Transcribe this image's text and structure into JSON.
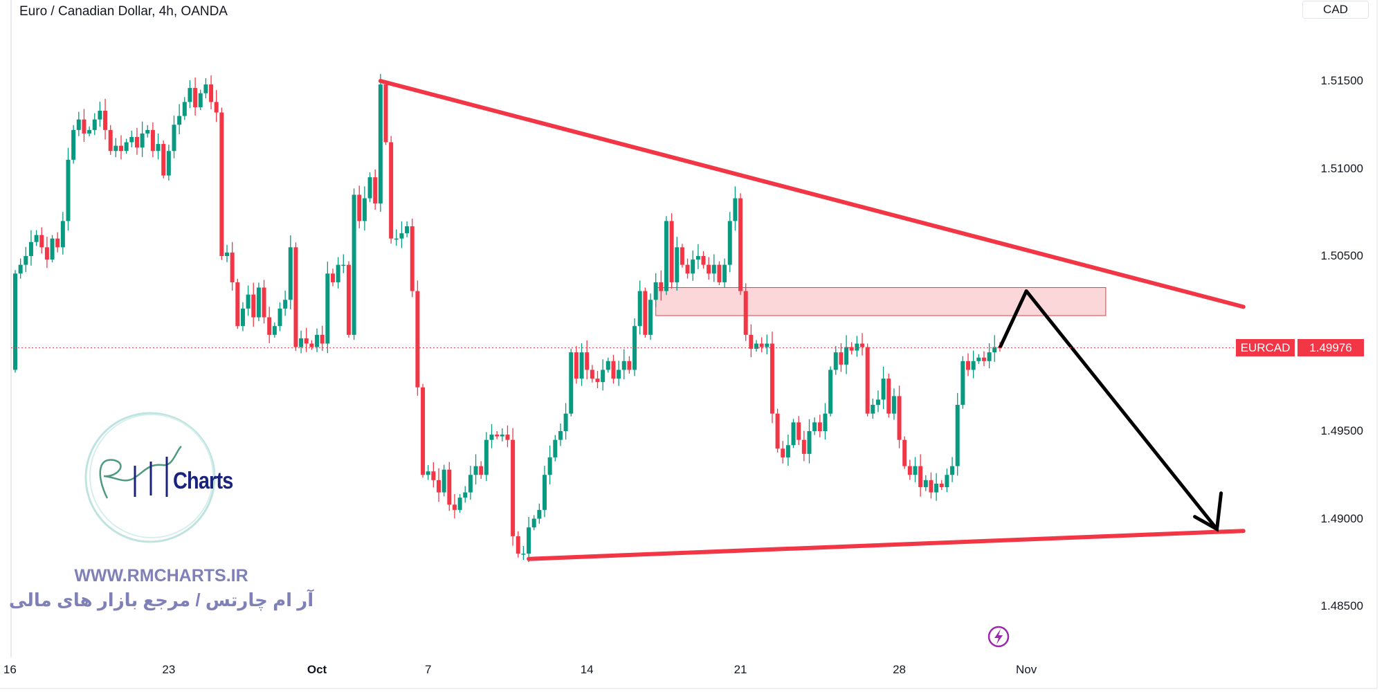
{
  "header": {
    "title": "Euro / Canadian Dollar, 4h, OANDA",
    "currency_button": "CAD"
  },
  "price_tag": {
    "symbol": "EURCAD",
    "value": "1.49976"
  },
  "watermark": {
    "logo_text": "RM Charts",
    "url": "WWW.RMCHARTS.IR",
    "tagline": "آر ام چارتس / مرجع بازار های مالی"
  },
  "icons": {
    "lightning": "lightning-icon"
  },
  "colors": {
    "up": "#089981",
    "down": "#f23645",
    "trendline": "#f23645",
    "arrow": "#000000",
    "zone": "#f23645"
  },
  "chart_data": {
    "type": "candlestick",
    "title": "Euro / Canadian Dollar, 4h, OANDA",
    "ylim": [
      1.4815,
      1.5196
    ],
    "y_ticks": [
      "1.51500",
      "1.51000",
      "1.50500",
      "1.49500",
      "1.49000",
      "1.48500"
    ],
    "y_tick_values": [
      1.515,
      1.51,
      1.505,
      1.495,
      1.49,
      1.485
    ],
    "x_ticks": [
      {
        "label": "16",
        "bar": -1
      },
      {
        "label": "23",
        "bar": 29
      },
      {
        "label": "Oct",
        "bar": 57,
        "bold": true
      },
      {
        "label": "7",
        "bar": 78
      },
      {
        "label": "14",
        "bar": 108
      },
      {
        "label": "21",
        "bar": 137
      },
      {
        "label": "28",
        "bar": 167
      },
      {
        "label": "Nov",
        "bar": 191
      }
    ],
    "first_open": 1.4985,
    "close": [
      1.504,
      1.5045,
      1.505,
      1.5058,
      1.5062,
      1.5055,
      1.5048,
      1.506,
      1.5055,
      1.507,
      1.5105,
      1.5122,
      1.5128,
      1.512,
      1.5122,
      1.5128,
      1.5133,
      1.5122,
      1.511,
      1.5113,
      1.511,
      1.5115,
      1.5118,
      1.5112,
      1.512,
      1.5122,
      1.511,
      1.5114,
      1.5096,
      1.511,
      1.5125,
      1.513,
      1.5138,
      1.5146,
      1.5135,
      1.5143,
      1.5148,
      1.5138,
      1.5132,
      1.505,
      1.5052,
      1.5035,
      1.501,
      1.502,
      1.5028,
      1.5015,
      1.5032,
      1.5015,
      1.5005,
      1.501,
      1.502,
      1.5025,
      1.5055,
      1.4998,
      1.5003,
      1.5,
      1.4998,
      1.5005,
      1.5,
      1.504,
      1.5035,
      1.5045,
      1.5045,
      1.5005,
      1.5085,
      1.507,
      1.5083,
      1.5095,
      1.508,
      1.5148,
      1.5115,
      1.506,
      1.506,
      1.5063,
      1.5067,
      1.503,
      1.4975,
      1.4925,
      1.4927,
      1.4922,
      1.4915,
      1.4928,
      1.4908,
      1.4905,
      1.4912,
      1.4915,
      1.4925,
      1.493,
      1.4925,
      1.4945,
      1.4948,
      1.4947,
      1.4948,
      1.4945,
      1.489,
      1.488,
      1.488,
      1.4895,
      1.49,
      1.4905,
      1.4925,
      1.4935,
      1.4945,
      1.495,
      1.496,
      1.4995,
      1.498,
      1.4995,
      1.4985,
      1.498,
      1.4978,
      1.4985,
      1.499,
      1.498,
      1.4985,
      1.499,
      1.4985,
      1.501,
      1.503,
      1.5005,
      1.5025,
      1.5035,
      1.503,
      1.507,
      1.5035,
      1.5055,
      1.5045,
      1.504,
      1.5048,
      1.505,
      1.5045,
      1.504,
      1.5045,
      1.5035,
      1.5045,
      1.507,
      1.5083,
      1.503,
      1.5005,
      1.4997,
      1.5,
      1.4998,
      1.5,
      1.496,
      1.494,
      1.4935,
      1.4942,
      1.4955,
      1.4945,
      1.4937,
      1.495,
      1.4955,
      1.495,
      1.496,
      1.4985,
      1.4995,
      1.4988,
      1.4998,
      1.4996,
      1.5,
      1.4998,
      1.496,
      1.4965,
      1.4968,
      1.498,
      1.496,
      1.497,
      1.4945,
      1.493,
      1.4925,
      1.493,
      1.4918,
      1.4922,
      1.4915,
      1.492,
      1.4918,
      1.4925,
      1.493,
      1.4965,
      1.499,
      1.4985,
      1.499,
      1.4992,
      1.499,
      1.4995,
      1.4998,
      1.49976
    ],
    "last_price": 1.49976,
    "drawings": {
      "upper_trendline": {
        "from": {
          "bar": 69,
          "price": 1.515
        },
        "to": {
          "bar": 232,
          "price": 1.5021
        }
      },
      "lower_trendline": {
        "from": {
          "bar": 97,
          "price": 1.4877
        },
        "to": {
          "bar": 232,
          "price": 1.4893
        }
      },
      "resistance_zone": {
        "from_bar": 121,
        "to_bar": 206,
        "top": 1.5032,
        "bottom": 1.5016
      },
      "projection_arrow": [
        {
          "bar": 186,
          "price": 1.49976
        },
        {
          "bar": 191,
          "price": 1.503
        },
        {
          "bar": 227,
          "price": 1.4894
        }
      ]
    }
  }
}
